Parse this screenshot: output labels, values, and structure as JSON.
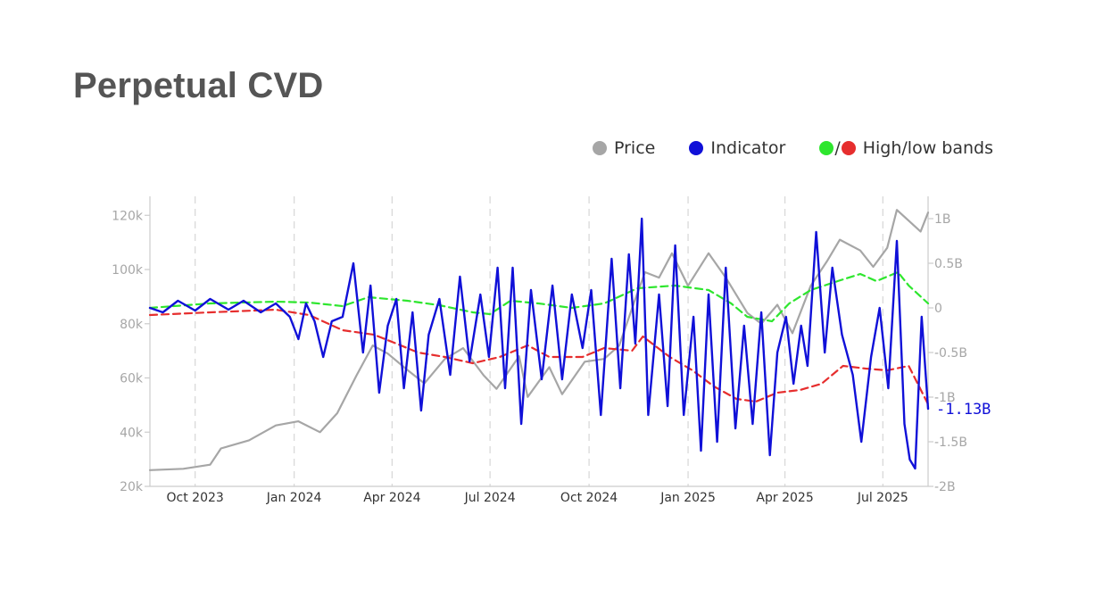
{
  "page": {
    "title": "Perpetual CVD"
  },
  "legend": {
    "price": {
      "label": "Price",
      "color": "#a6a6a6"
    },
    "indicator": {
      "label": "Indicator",
      "color": "#1010d8"
    },
    "bands": {
      "label": "High/low bands",
      "high_color": "#2ee62e",
      "low_color": "#e62e2e",
      "separator": "/"
    }
  },
  "chart_data": {
    "type": "line",
    "title": "Perpetual CVD",
    "x_tick_labels": [
      "Oct 2023",
      "Jan 2024",
      "Apr 2024",
      "Jul 2024",
      "Oct 2024",
      "Jan 2025",
      "Apr 2025",
      "Jul 2025"
    ],
    "x_ticks": [
      "2023-10-01",
      "2024-01-01",
      "2024-04-01",
      "2024-07-01",
      "2024-10-01",
      "2025-01-01",
      "2025-04-01",
      "2025-07-01"
    ],
    "x_range": [
      "2023-08-20",
      "2025-08-12"
    ],
    "left_axis": {
      "ticks": [
        20000,
        40000,
        60000,
        80000,
        100000,
        120000
      ],
      "tick_labels": [
        "20k",
        "40k",
        "60k",
        "80k",
        "100k",
        "120k"
      ],
      "range": [
        20000,
        127000
      ]
    },
    "right_axis": {
      "ticks": [
        -2,
        -1.5,
        -1,
        -0.5,
        0,
        0.5,
        1
      ],
      "tick_labels": [
        "-2B",
        "-1.5B",
        "-1B",
        "-0.5B",
        "0",
        "0.5B",
        "1B"
      ],
      "range": [
        -2,
        1.25
      ]
    },
    "grid": "vertical dashed at x ticks",
    "last_value_label": "-1.13B",
    "series": [
      {
        "name": "Price",
        "axis": "left",
        "color": "#a6a6a6",
        "points": [
          [
            "2023-08-20",
            26000
          ],
          [
            "2023-09-20",
            26500
          ],
          [
            "2023-10-15",
            28000
          ],
          [
            "2023-10-25",
            34000
          ],
          [
            "2023-11-20",
            37000
          ],
          [
            "2023-12-15",
            42500
          ],
          [
            "2024-01-05",
            44000
          ],
          [
            "2024-01-25",
            40000
          ],
          [
            "2024-02-10",
            47000
          ],
          [
            "2024-02-28",
            61000
          ],
          [
            "2024-03-14",
            72000
          ],
          [
            "2024-03-28",
            69000
          ],
          [
            "2024-04-15",
            63000
          ],
          [
            "2024-05-01",
            58000
          ],
          [
            "2024-05-20",
            67000
          ],
          [
            "2024-06-06",
            71000
          ],
          [
            "2024-06-25",
            61000
          ],
          [
            "2024-07-07",
            56000
          ],
          [
            "2024-07-28",
            68000
          ],
          [
            "2024-08-05",
            53000
          ],
          [
            "2024-08-25",
            64000
          ],
          [
            "2024-09-06",
            54000
          ],
          [
            "2024-09-27",
            66000
          ],
          [
            "2024-10-15",
            67000
          ],
          [
            "2024-10-29",
            72000
          ],
          [
            "2024-11-12",
            88000
          ],
          [
            "2024-11-22",
            99000
          ],
          [
            "2024-12-05",
            97000
          ],
          [
            "2024-12-17",
            106000
          ],
          [
            "2025-01-01",
            94000
          ],
          [
            "2025-01-20",
            106000
          ],
          [
            "2025-02-05",
            97000
          ],
          [
            "2025-02-25",
            84000
          ],
          [
            "2025-03-10",
            80000
          ],
          [
            "2025-03-25",
            87000
          ],
          [
            "2025-04-08",
            76500
          ],
          [
            "2025-04-25",
            94000
          ],
          [
            "2025-05-10",
            103000
          ],
          [
            "2025-05-22",
            111000
          ],
          [
            "2025-06-10",
            107000
          ],
          [
            "2025-06-22",
            101000
          ],
          [
            "2025-07-05",
            108000
          ],
          [
            "2025-07-14",
            122000
          ],
          [
            "2025-07-25",
            118000
          ],
          [
            "2025-08-05",
            114000
          ],
          [
            "2025-08-12",
            121000
          ]
        ]
      },
      {
        "name": "Indicator",
        "axis": "right",
        "color": "#1010d8",
        "points": [
          [
            "2023-08-20",
            0.0
          ],
          [
            "2023-09-01",
            -0.05
          ],
          [
            "2023-09-15",
            0.08
          ],
          [
            "2023-10-01",
            -0.03
          ],
          [
            "2023-10-15",
            0.1
          ],
          [
            "2023-11-01",
            -0.02
          ],
          [
            "2023-11-15",
            0.08
          ],
          [
            "2023-12-01",
            -0.05
          ],
          [
            "2023-12-15",
            0.05
          ],
          [
            "2023-12-28",
            -0.1
          ],
          [
            "2024-01-05",
            -0.35
          ],
          [
            "2024-01-12",
            0.05
          ],
          [
            "2024-01-20",
            -0.15
          ],
          [
            "2024-01-28",
            -0.55
          ],
          [
            "2024-02-05",
            -0.15
          ],
          [
            "2024-02-15",
            -0.1
          ],
          [
            "2024-02-25",
            0.5
          ],
          [
            "2024-03-05",
            -0.5
          ],
          [
            "2024-03-12",
            0.25
          ],
          [
            "2024-03-20",
            -0.95
          ],
          [
            "2024-03-28",
            -0.2
          ],
          [
            "2024-04-05",
            0.1
          ],
          [
            "2024-04-12",
            -0.9
          ],
          [
            "2024-04-20",
            -0.05
          ],
          [
            "2024-04-28",
            -1.15
          ],
          [
            "2024-05-05",
            -0.3
          ],
          [
            "2024-05-15",
            0.1
          ],
          [
            "2024-05-25",
            -0.75
          ],
          [
            "2024-06-03",
            0.35
          ],
          [
            "2024-06-12",
            -0.6
          ],
          [
            "2024-06-22",
            0.15
          ],
          [
            "2024-06-30",
            -0.55
          ],
          [
            "2024-07-08",
            0.45
          ],
          [
            "2024-07-15",
            -0.9
          ],
          [
            "2024-07-22",
            0.45
          ],
          [
            "2024-07-30",
            -1.3
          ],
          [
            "2024-08-08",
            0.2
          ],
          [
            "2024-08-18",
            -0.8
          ],
          [
            "2024-08-28",
            0.25
          ],
          [
            "2024-09-06",
            -0.8
          ],
          [
            "2024-09-15",
            0.15
          ],
          [
            "2024-09-25",
            -0.45
          ],
          [
            "2024-10-03",
            0.2
          ],
          [
            "2024-10-12",
            -1.2
          ],
          [
            "2024-10-22",
            0.55
          ],
          [
            "2024-10-30",
            -0.9
          ],
          [
            "2024-11-07",
            0.6
          ],
          [
            "2024-11-13",
            -0.4
          ],
          [
            "2024-11-19",
            1.0
          ],
          [
            "2024-11-25",
            -1.2
          ],
          [
            "2024-12-05",
            0.15
          ],
          [
            "2024-12-13",
            -1.1
          ],
          [
            "2024-12-20",
            0.7
          ],
          [
            "2024-12-28",
            -1.2
          ],
          [
            "2025-01-06",
            -0.1
          ],
          [
            "2025-01-13",
            -1.6
          ],
          [
            "2025-01-20",
            0.15
          ],
          [
            "2025-01-28",
            -1.5
          ],
          [
            "2025-02-05",
            0.45
          ],
          [
            "2025-02-14",
            -1.35
          ],
          [
            "2025-02-22",
            -0.2
          ],
          [
            "2025-03-02",
            -1.3
          ],
          [
            "2025-03-10",
            -0.05
          ],
          [
            "2025-03-18",
            -1.65
          ],
          [
            "2025-03-25",
            -0.5
          ],
          [
            "2025-04-02",
            -0.1
          ],
          [
            "2025-04-09",
            -0.85
          ],
          [
            "2025-04-16",
            -0.2
          ],
          [
            "2025-04-22",
            -0.65
          ],
          [
            "2025-04-30",
            0.85
          ],
          [
            "2025-05-08",
            -0.5
          ],
          [
            "2025-05-15",
            0.45
          ],
          [
            "2025-05-24",
            -0.3
          ],
          [
            "2025-06-03",
            -0.75
          ],
          [
            "2025-06-11",
            -1.5
          ],
          [
            "2025-06-20",
            -0.55
          ],
          [
            "2025-06-28",
            0.0
          ],
          [
            "2025-07-06",
            -0.9
          ],
          [
            "2025-07-14",
            0.75
          ],
          [
            "2025-07-21",
            -1.3
          ],
          [
            "2025-07-26",
            -1.7
          ],
          [
            "2025-07-31",
            -1.8
          ],
          [
            "2025-08-06",
            -0.1
          ],
          [
            "2025-08-12",
            -1.13
          ]
        ]
      },
      {
        "name": "High band",
        "axis": "right",
        "color": "#2ee62e",
        "dash": true,
        "points": [
          [
            "2023-08-20",
            0.0
          ],
          [
            "2023-10-15",
            0.05
          ],
          [
            "2023-12-15",
            0.07
          ],
          [
            "2024-01-15",
            0.06
          ],
          [
            "2024-02-15",
            0.02
          ],
          [
            "2024-03-10",
            0.12
          ],
          [
            "2024-04-15",
            0.08
          ],
          [
            "2024-05-15",
            0.03
          ],
          [
            "2024-06-15",
            -0.05
          ],
          [
            "2024-07-01",
            -0.07
          ],
          [
            "2024-07-20",
            0.08
          ],
          [
            "2024-08-15",
            0.05
          ],
          [
            "2024-09-15",
            0.0
          ],
          [
            "2024-10-15",
            0.05
          ],
          [
            "2024-11-15",
            0.22
          ],
          [
            "2024-12-20",
            0.25
          ],
          [
            "2025-01-20",
            0.2
          ],
          [
            "2025-02-10",
            0.05
          ],
          [
            "2025-02-25",
            -0.1
          ],
          [
            "2025-03-20",
            -0.15
          ],
          [
            "2025-04-05",
            0.05
          ],
          [
            "2025-04-25",
            0.2
          ],
          [
            "2025-05-20",
            0.3
          ],
          [
            "2025-06-10",
            0.38
          ],
          [
            "2025-06-25",
            0.3
          ],
          [
            "2025-07-15",
            0.4
          ],
          [
            "2025-07-25",
            0.25
          ],
          [
            "2025-08-12",
            0.05
          ]
        ]
      },
      {
        "name": "Low band",
        "axis": "right",
        "color": "#e62e2e",
        "dash": true,
        "points": [
          [
            "2023-08-20",
            -0.08
          ],
          [
            "2023-10-15",
            -0.05
          ],
          [
            "2023-12-15",
            -0.02
          ],
          [
            "2024-01-15",
            -0.08
          ],
          [
            "2024-02-15",
            -0.25
          ],
          [
            "2024-03-15",
            -0.3
          ],
          [
            "2024-04-05",
            -0.4
          ],
          [
            "2024-04-25",
            -0.5
          ],
          [
            "2024-05-20",
            -0.55
          ],
          [
            "2024-06-15",
            -0.62
          ],
          [
            "2024-07-10",
            -0.55
          ],
          [
            "2024-08-05",
            -0.42
          ],
          [
            "2024-08-25",
            -0.55
          ],
          [
            "2024-09-25",
            -0.55
          ],
          [
            "2024-10-15",
            -0.45
          ],
          [
            "2024-11-10",
            -0.48
          ],
          [
            "2024-11-20",
            -0.32
          ],
          [
            "2024-12-15",
            -0.55
          ],
          [
            "2025-01-05",
            -0.7
          ],
          [
            "2025-01-25",
            -0.88
          ],
          [
            "2025-02-15",
            -1.02
          ],
          [
            "2025-03-05",
            -1.05
          ],
          [
            "2025-03-25",
            -0.95
          ],
          [
            "2025-04-15",
            -0.92
          ],
          [
            "2025-05-05",
            -0.85
          ],
          [
            "2025-05-25",
            -0.65
          ],
          [
            "2025-06-15",
            -0.68
          ],
          [
            "2025-07-05",
            -0.7
          ],
          [
            "2025-07-25",
            -0.65
          ],
          [
            "2025-08-12",
            -1.08
          ]
        ]
      }
    ]
  }
}
